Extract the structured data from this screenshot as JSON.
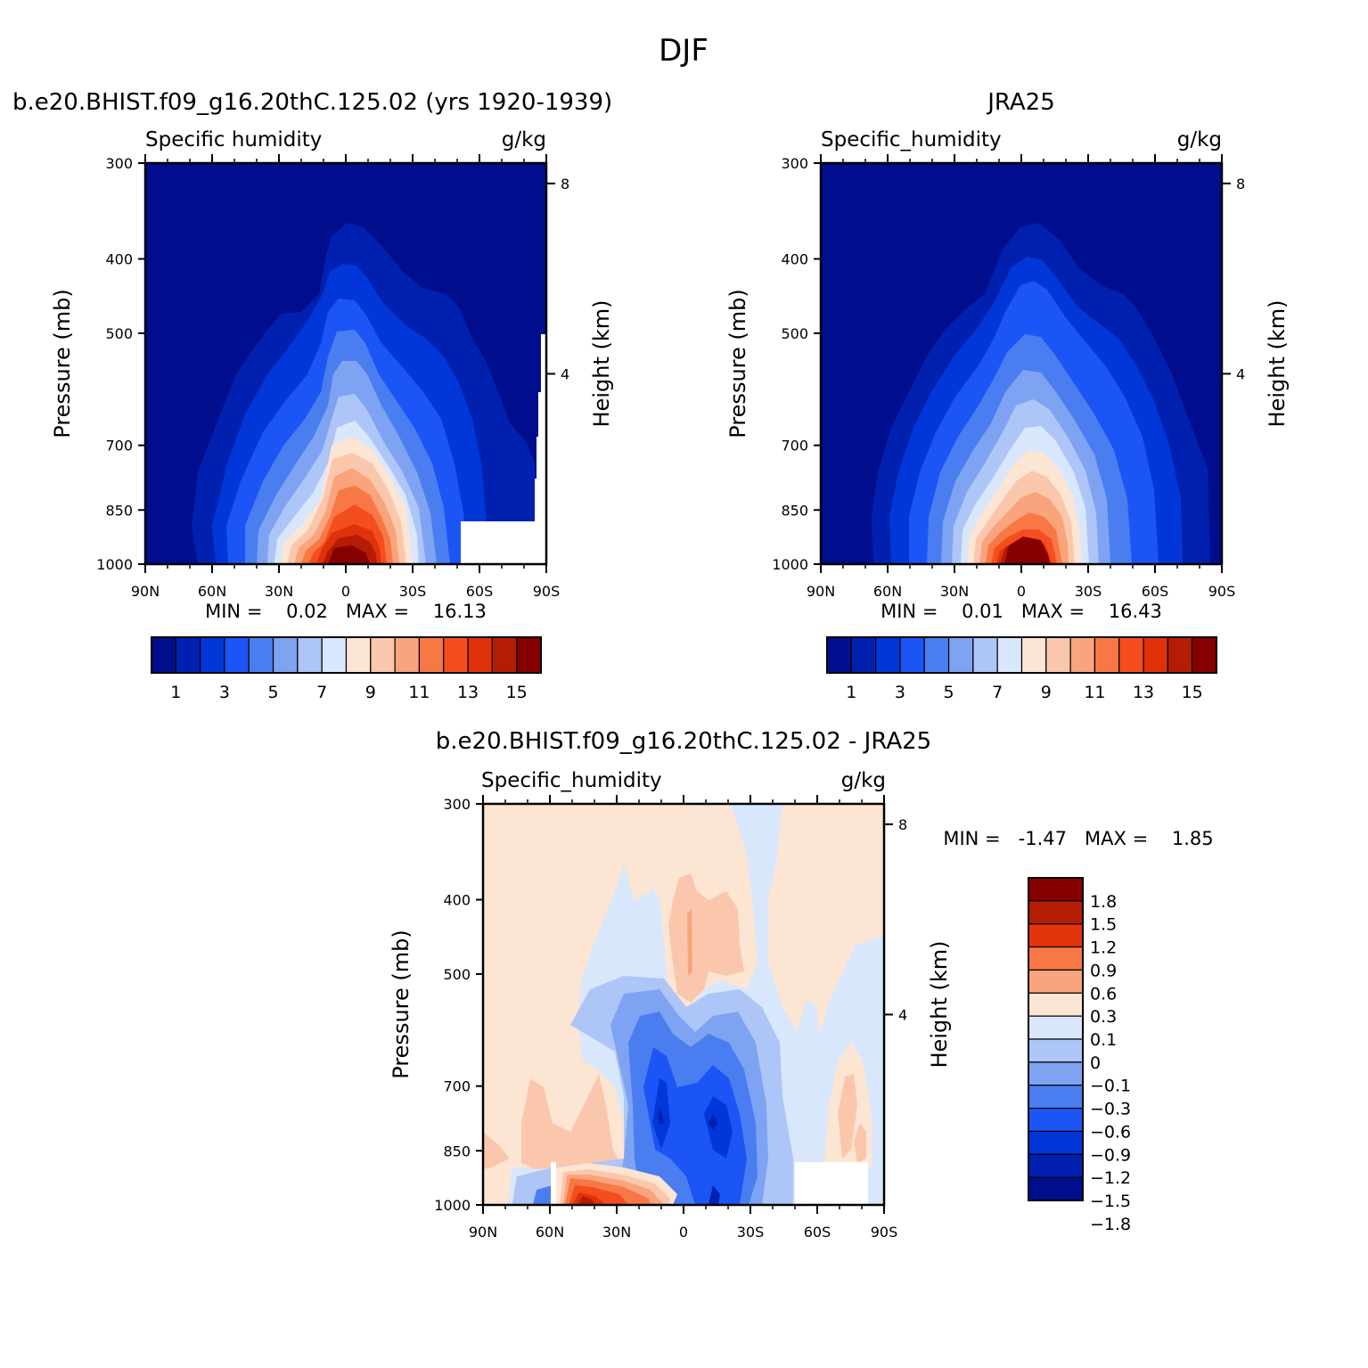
{
  "figure": {
    "title": "DJF"
  },
  "panels": [
    {
      "title": "b.e20.BHIST.f09_g16.20thC.125.02 (yrs 1920-1939)",
      "left_label": "Specific humidity",
      "unit": "g/kg",
      "ylabel": "Pressure (mb)",
      "y2label": "Height (km)",
      "stat_text": "MIN =    0.02   MAX =    16.13"
    },
    {
      "title": "JRA25",
      "left_label": "Specific_humidity",
      "unit": "g/kg",
      "ylabel": "Pressure (mb)",
      "y2label": "Height (km)",
      "stat_text": "MIN =    0.01   MAX =    16.43"
    },
    {
      "title": "b.e20.BHIST.f09_g16.20thC.125.02 - JRA25",
      "left_label": "Specific_humidity",
      "unit": "g/kg",
      "ylabel": "Pressure (mb)",
      "y2label": "Height (km)",
      "stat_text": "MIN =   -1.47   MAX =    1.85"
    }
  ],
  "colorbars": {
    "absolute": {
      "colors": [
        "#000e8e",
        "#0021b0",
        "#0137d8",
        "#1c55f5",
        "#4a7ef0",
        "#7ea3f2",
        "#adc6f7",
        "#d8e7fb",
        "#fde5d4",
        "#fbc7ac",
        "#f9a47d",
        "#f87845",
        "#f54e1e",
        "#df320a",
        "#b51c05",
        "#870000"
      ],
      "labels": [
        "1",
        "3",
        "5",
        "7",
        "9",
        "11",
        "13",
        "15"
      ]
    },
    "difference": {
      "colors": [
        "#870000",
        "#b51c05",
        "#e3330b",
        "#f87845",
        "#f9a47d",
        "#fde5d4",
        "#d8e7fb",
        "#adc6f7",
        "#7ea3f2",
        "#4a7ef0",
        "#1c55f5",
        "#0137d8",
        "#0021b0",
        "#000e8e"
      ],
      "labels": [
        "1.8",
        "1.5",
        "1.2",
        "0.9",
        "0.6",
        "0.3",
        "0.1",
        "0",
        "-0.1",
        "-0.3",
        "-0.6",
        "-0.9",
        "-1.2",
        "-1.5",
        "-1.8"
      ]
    }
  },
  "chart_data": [
    {
      "type": "heatmap",
      "title": "b.e20.BHIST.f09_g16.20thC.125.02 (yrs 1920-1939)",
      "variable": "Specific humidity",
      "units": "g/kg",
      "xlabel": "",
      "ylabel": "Pressure (mb)",
      "y2label": "Height (km)",
      "x_ticks": [
        "90N",
        "60N",
        "30N",
        "0",
        "30S",
        "60S",
        "90S"
      ],
      "x_range": [
        90,
        -90
      ],
      "y_ticks": [
        300,
        400,
        500,
        700,
        850,
        1000
      ],
      "y_range": [
        1000,
        300
      ],
      "y_scale": "log",
      "y2_ticks": [
        8,
        4
      ],
      "contour_levels": [
        1,
        2,
        3,
        4,
        5,
        6,
        7,
        8,
        9,
        10,
        11,
        12,
        13,
        14,
        15
      ],
      "min": 0.02,
      "max": 16.13,
      "peak_latitude": 0,
      "peak_pressure": 1000
    },
    {
      "type": "heatmap",
      "title": "JRA25",
      "variable": "Specific_humidity",
      "units": "g/kg",
      "xlabel": "",
      "ylabel": "Pressure (mb)",
      "y2label": "Height (km)",
      "x_ticks": [
        "90N",
        "60N",
        "30N",
        "0",
        "30S",
        "60S",
        "90S"
      ],
      "x_range": [
        90,
        -90
      ],
      "y_ticks": [
        300,
        400,
        500,
        700,
        850,
        1000
      ],
      "y_range": [
        1000,
        300
      ],
      "y_scale": "log",
      "y2_ticks": [
        8,
        4
      ],
      "contour_levels": [
        1,
        2,
        3,
        4,
        5,
        6,
        7,
        8,
        9,
        10,
        11,
        12,
        13,
        14,
        15
      ],
      "min": 0.01,
      "max": 16.43,
      "peak_latitude": 0,
      "peak_pressure": 1000
    },
    {
      "type": "heatmap",
      "title": "b.e20.BHIST.f09_g16.20thC.125.02 - JRA25",
      "variable": "Specific_humidity",
      "units": "g/kg",
      "xlabel": "",
      "ylabel": "Pressure (mb)",
      "y2label": "Height (km)",
      "x_ticks": [
        "90N",
        "60N",
        "30N",
        "0",
        "30S",
        "60S",
        "90S"
      ],
      "x_range": [
        90,
        -90
      ],
      "y_ticks": [
        300,
        400,
        500,
        700,
        850,
        1000
      ],
      "y_range": [
        1000,
        300
      ],
      "y_scale": "log",
      "y2_ticks": [
        8,
        4
      ],
      "contour_levels": [
        -1.8,
        -1.5,
        -1.2,
        -0.9,
        -0.6,
        -0.3,
        -0.1,
        0,
        0.1,
        0.3,
        0.6,
        0.9,
        1.2,
        1.5,
        1.8
      ],
      "min": -1.47,
      "max": 1.85
    }
  ]
}
